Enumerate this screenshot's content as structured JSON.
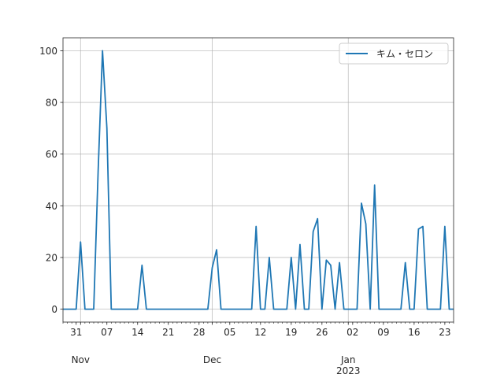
{
  "chart_data": {
    "type": "line",
    "title": "",
    "xlabel": "",
    "ylabel": "",
    "grid": true,
    "legend_position": "upper right",
    "series": [
      {
        "name": "キム・セロン",
        "color": "#1f77b4",
        "points": [
          [
            "2022-10-28",
            0
          ],
          [
            "2022-10-29",
            0
          ],
          [
            "2022-10-30",
            0
          ],
          [
            "2022-10-31",
            0
          ],
          [
            "2022-11-01",
            26
          ],
          [
            "2022-11-02",
            0
          ],
          [
            "2022-11-03",
            0
          ],
          [
            "2022-11-04",
            0
          ],
          [
            "2022-11-05",
            53
          ],
          [
            "2022-11-06",
            100
          ],
          [
            "2022-11-07",
            70
          ],
          [
            "2022-11-08",
            0
          ],
          [
            "2022-11-09",
            0
          ],
          [
            "2022-11-10",
            0
          ],
          [
            "2022-11-11",
            0
          ],
          [
            "2022-11-12",
            0
          ],
          [
            "2022-11-13",
            0
          ],
          [
            "2022-11-14",
            0
          ],
          [
            "2022-11-15",
            17
          ],
          [
            "2022-11-16",
            0
          ],
          [
            "2022-11-17",
            0
          ],
          [
            "2022-11-18",
            0
          ],
          [
            "2022-11-19",
            0
          ],
          [
            "2022-11-20",
            0
          ],
          [
            "2022-11-21",
            0
          ],
          [
            "2022-11-22",
            0
          ],
          [
            "2022-11-23",
            0
          ],
          [
            "2022-11-24",
            0
          ],
          [
            "2022-11-25",
            0
          ],
          [
            "2022-11-26",
            0
          ],
          [
            "2022-11-27",
            0
          ],
          [
            "2022-11-28",
            0
          ],
          [
            "2022-11-29",
            0
          ],
          [
            "2022-11-30",
            0
          ],
          [
            "2022-12-01",
            16
          ],
          [
            "2022-12-02",
            23
          ],
          [
            "2022-12-03",
            0
          ],
          [
            "2022-12-04",
            0
          ],
          [
            "2022-12-05",
            0
          ],
          [
            "2022-12-06",
            0
          ],
          [
            "2022-12-07",
            0
          ],
          [
            "2022-12-08",
            0
          ],
          [
            "2022-12-09",
            0
          ],
          [
            "2022-12-10",
            0
          ],
          [
            "2022-12-11",
            32
          ],
          [
            "2022-12-12",
            0
          ],
          [
            "2022-12-13",
            0
          ],
          [
            "2022-12-14",
            20
          ],
          [
            "2022-12-15",
            0
          ],
          [
            "2022-12-16",
            0
          ],
          [
            "2022-12-17",
            0
          ],
          [
            "2022-12-18",
            0
          ],
          [
            "2022-12-19",
            20
          ],
          [
            "2022-12-20",
            0
          ],
          [
            "2022-12-21",
            25
          ],
          [
            "2022-12-22",
            0
          ],
          [
            "2022-12-23",
            0
          ],
          [
            "2022-12-24",
            30
          ],
          [
            "2022-12-25",
            35
          ],
          [
            "2022-12-26",
            0
          ],
          [
            "2022-12-27",
            19
          ],
          [
            "2022-12-28",
            17
          ],
          [
            "2022-12-29",
            0
          ],
          [
            "2022-12-30",
            18
          ],
          [
            "2022-12-31",
            0
          ],
          [
            "2023-01-01",
            0
          ],
          [
            "2023-01-02",
            0
          ],
          [
            "2023-01-03",
            0
          ],
          [
            "2023-01-04",
            41
          ],
          [
            "2023-01-05",
            33
          ],
          [
            "2023-01-06",
            0
          ],
          [
            "2023-01-07",
            48
          ],
          [
            "2023-01-08",
            0
          ],
          [
            "2023-01-09",
            0
          ],
          [
            "2023-01-10",
            0
          ],
          [
            "2023-01-11",
            0
          ],
          [
            "2023-01-12",
            0
          ],
          [
            "2023-01-13",
            0
          ],
          [
            "2023-01-14",
            18
          ],
          [
            "2023-01-15",
            0
          ],
          [
            "2023-01-16",
            0
          ],
          [
            "2023-01-17",
            31
          ],
          [
            "2023-01-18",
            32
          ],
          [
            "2023-01-19",
            0
          ],
          [
            "2023-01-20",
            0
          ],
          [
            "2023-01-21",
            0
          ],
          [
            "2023-01-22",
            0
          ],
          [
            "2023-01-23",
            32
          ],
          [
            "2023-01-24",
            0
          ],
          [
            "2023-01-25",
            0
          ]
        ]
      }
    ],
    "x_range": [
      "2022-10-28",
      "2023-01-25"
    ],
    "ylim": [
      -5,
      105
    ],
    "y_ticks": [
      0,
      20,
      40,
      60,
      80,
      100
    ],
    "x_ticks": [
      {
        "date": "2022-10-31",
        "label": "31"
      },
      {
        "date": "2022-11-07",
        "label": "07"
      },
      {
        "date": "2022-11-14",
        "label": "14"
      },
      {
        "date": "2022-11-21",
        "label": "21"
      },
      {
        "date": "2022-11-28",
        "label": "28"
      },
      {
        "date": "2022-12-05",
        "label": "05"
      },
      {
        "date": "2022-12-12",
        "label": "12"
      },
      {
        "date": "2022-12-19",
        "label": "19"
      },
      {
        "date": "2022-12-26",
        "label": "26"
      },
      {
        "date": "2023-01-02",
        "label": "02"
      },
      {
        "date": "2023-01-09",
        "label": "09"
      },
      {
        "date": "2023-01-16",
        "label": "16"
      },
      {
        "date": "2023-01-23",
        "label": "23"
      }
    ],
    "x_major_ticks": [
      {
        "date": "2022-11-01",
        "label": "Nov",
        "year": ""
      },
      {
        "date": "2022-12-01",
        "label": "Dec",
        "year": ""
      },
      {
        "date": "2023-01-01",
        "label": "Jan",
        "year": "2023"
      }
    ]
  }
}
